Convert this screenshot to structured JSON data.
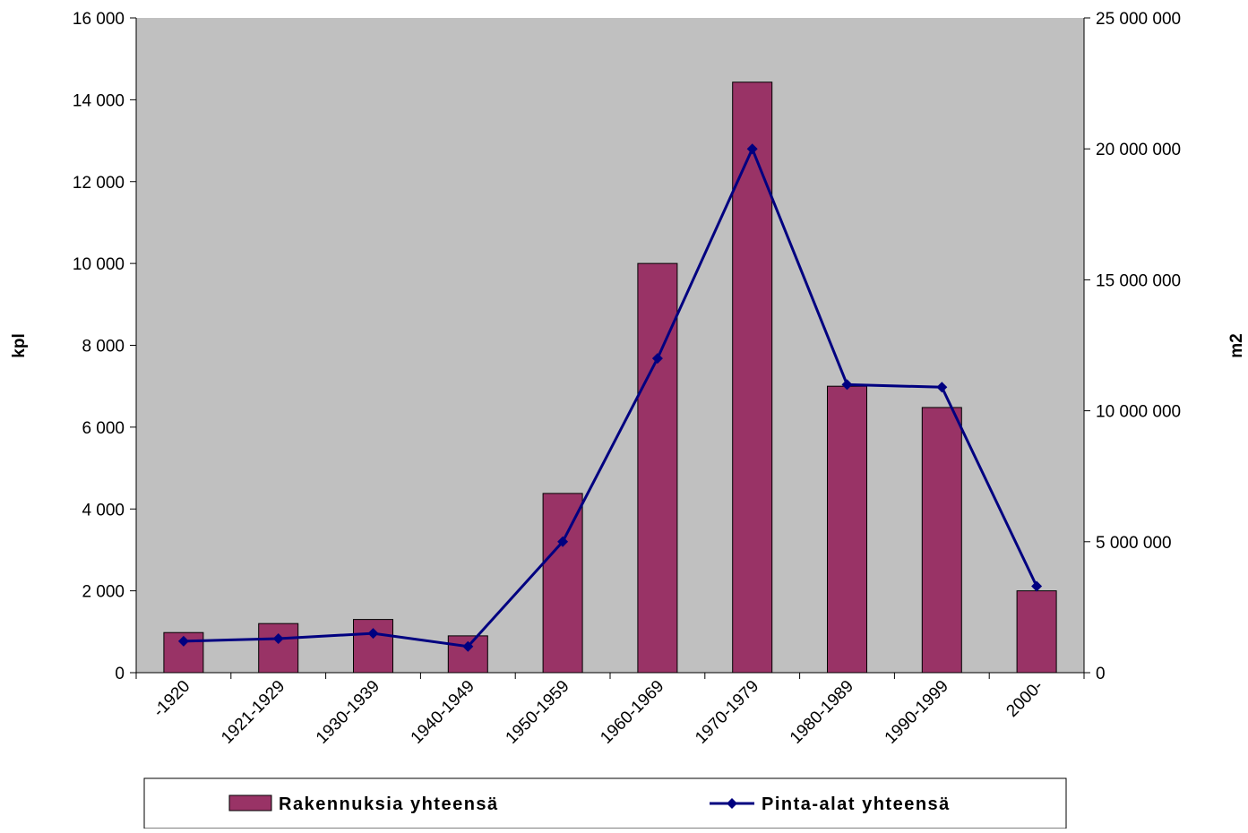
{
  "chart_data": {
    "type": "bar",
    "categories": [
      "-1920",
      "1921-1929",
      "1930-1939",
      "1940-1949",
      "1950-1959",
      "1960-1969",
      "1970-1979",
      "1980-1989",
      "1990-1999",
      "2000-"
    ],
    "series": [
      {
        "name": "Rakennuksia yhteensä",
        "type": "bar",
        "axis": "left",
        "color": "#993366",
        "values": [
          980,
          1200,
          1300,
          900,
          4380,
          10000,
          14430,
          7000,
          6480,
          2000
        ]
      },
      {
        "name": "Pinta-alat yhteensä",
        "type": "line",
        "axis": "right",
        "color": "#000080",
        "marker": "diamond",
        "values": [
          1200000,
          1300000,
          1500000,
          1000000,
          5000000,
          12000000,
          20000000,
          11000000,
          10900000,
          3300000
        ]
      }
    ],
    "ylabel": "kpl",
    "y2label": "m2",
    "ylim": [
      0,
      16000
    ],
    "y2lim": [
      0,
      25000000
    ],
    "yticks": [
      "0",
      "2 000",
      "4 000",
      "6 000",
      "8 000",
      "10 000",
      "12 000",
      "14 000",
      "16 000"
    ],
    "y2ticks": [
      "0",
      "5 000 000",
      "10 000 000",
      "15 000 000",
      "20 000 000",
      "25 000 000"
    ],
    "plot_background": "#c0c0c0",
    "grid": false,
    "legend_position": "bottom"
  }
}
